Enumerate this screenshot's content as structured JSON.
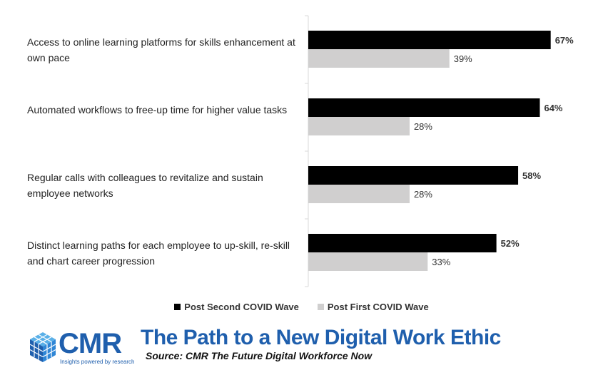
{
  "chart_data": {
    "type": "bar",
    "orientation": "horizontal",
    "categories": [
      "Access to online learning platforms for skills enhancement at own pace",
      "Automated workflows to free-up time for higher value tasks",
      "Regular calls with colleagues to revitalize and sustain employee networks",
      "Distinct learning paths for each employee to up-skill, re-skill and chart career progression"
    ],
    "series": [
      {
        "name": "Post Second COVID Wave",
        "values": [
          67,
          64,
          58,
          52
        ],
        "labels": [
          "67%",
          "64%",
          "58%",
          "52%"
        ],
        "color": "#000000"
      },
      {
        "name": "Post First COVID Wave",
        "values": [
          39,
          28,
          28,
          33
        ],
        "labels": [
          "39%",
          "28%",
          "28%",
          "33%"
        ],
        "color": "#d0cfcf"
      }
    ],
    "xlim": [
      0,
      75
    ],
    "legend_position": "bottom",
    "grid": false
  },
  "footer": {
    "title": "The Path to a New Digital Work Ethic",
    "source": "Source: CMR The Future Digital Workforce Now"
  },
  "logo": {
    "text": "CMR",
    "tagline": "Insights powered by research",
    "color": "#1f5fad"
  }
}
